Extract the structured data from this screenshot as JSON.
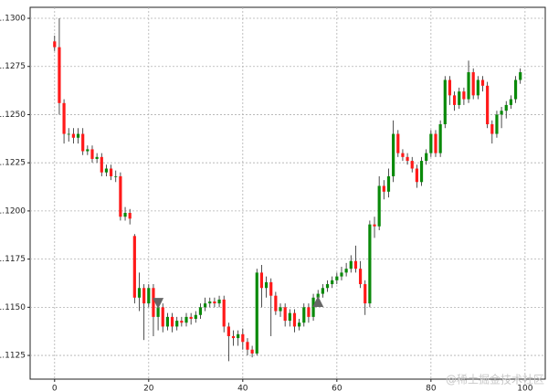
{
  "chart_data": {
    "type": "candlestick",
    "open": [
      1.1288,
      1.1285,
      1.1256,
      1.124,
      1.124,
      1.1238,
      1.124,
      1.1231,
      1.1232,
      1.1227,
      1.1228,
      1.122,
      1.1222,
      1.1218,
      1.1218,
      1.1197,
      1.1199,
      1.1187,
      1.1155,
      1.116,
      1.1152,
      1.116,
      1.1145,
      1.115,
      1.114,
      1.1145,
      1.114,
      1.1143,
      1.1142,
      1.1145,
      1.1144,
      1.1146,
      1.115,
      1.1152,
      1.1153,
      1.1152,
      1.1154,
      1.114,
      1.1135,
      1.1134,
      1.1136,
      1.1132,
      1.1128,
      1.1126,
      1.1168,
      1.116,
      1.1163,
      1.1156,
      1.1148,
      1.115,
      1.1143,
      1.1147,
      1.114,
      1.1142,
      1.115,
      1.1145,
      1.1155,
      1.1157,
      1.116,
      1.1162,
      1.1164,
      1.1166,
      1.1168,
      1.117,
      1.1174,
      1.117,
      1.1162,
      1.1152,
      1.1193,
      1.1192,
      1.1213,
      1.121,
      1.1218,
      1.124,
      1.123,
      1.1228,
      1.1226,
      1.1222,
      1.1215,
      1.1226,
      1.123,
      1.124,
      1.123,
      1.1245,
      1.1268,
      1.126,
      1.1255,
      1.1262,
      1.1258,
      1.1272,
      1.126,
      1.1268,
      1.1265,
      1.1245,
      1.124,
      1.125,
      1.1252,
      1.1255,
      1.1258,
      1.1268
    ],
    "high": [
      1.1291,
      1.13,
      1.1258,
      1.1243,
      1.1243,
      1.1243,
      1.1243,
      1.1234,
      1.1234,
      1.123,
      1.123,
      1.1224,
      1.1224,
      1.1221,
      1.122,
      1.1202,
      1.1201,
      1.1188,
      1.1168,
      1.1162,
      1.1162,
      1.1162,
      1.1152,
      1.1152,
      1.1147,
      1.1147,
      1.1145,
      1.1145,
      1.1147,
      1.1147,
      1.1148,
      1.1152,
      1.1155,
      1.1155,
      1.1155,
      1.1156,
      1.1156,
      1.1142,
      1.1138,
      1.1138,
      1.1139,
      1.1134,
      1.113,
      1.117,
      1.1172,
      1.1166,
      1.1165,
      1.1158,
      1.1152,
      1.1152,
      1.1149,
      1.1149,
      1.1144,
      1.1152,
      1.1152,
      1.1157,
      1.1159,
      1.1162,
      1.1164,
      1.1166,
      1.1168,
      1.1171,
      1.1173,
      1.1177,
      1.1182,
      1.1174,
      1.1164,
      1.1195,
      1.1197,
      1.1218,
      1.1216,
      1.1222,
      1.1247,
      1.1242,
      1.1232,
      1.123,
      1.1228,
      1.1224,
      1.1228,
      1.1232,
      1.1242,
      1.1242,
      1.1247,
      1.127,
      1.127,
      1.1262,
      1.1264,
      1.1264,
      1.1278,
      1.1274,
      1.127,
      1.127,
      1.1267,
      1.1247,
      1.1252,
      1.1254,
      1.1257,
      1.126,
      1.127,
      1.1274
    ],
    "low": [
      1.1283,
      1.125,
      1.1235,
      1.1236,
      1.1235,
      1.1235,
      1.1229,
      1.1229,
      1.1225,
      1.1225,
      1.1218,
      1.1218,
      1.1216,
      1.1215,
      1.1195,
      1.1195,
      1.1193,
      1.1152,
      1.1148,
      1.1133,
      1.115,
      1.1135,
      1.1138,
      1.1137,
      1.1138,
      1.1137,
      1.1138,
      1.114,
      1.114,
      1.1141,
      1.1142,
      1.1144,
      1.1148,
      1.115,
      1.115,
      1.115,
      1.1137,
      1.1122,
      1.113,
      1.113,
      1.1128,
      1.1125,
      1.1124,
      1.1125,
      1.115,
      1.1155,
      1.1135,
      1.1146,
      1.1145,
      1.114,
      1.114,
      1.1137,
      1.1138,
      1.114,
      1.1142,
      1.1143,
      1.1153,
      1.1155,
      1.1158,
      1.116,
      1.1162,
      1.1164,
      1.1166,
      1.1168,
      1.1168,
      1.116,
      1.1146,
      1.115,
      1.1186,
      1.119,
      1.1206,
      1.1207,
      1.1215,
      1.1228,
      1.1226,
      1.1224,
      1.122,
      1.1212,
      1.1213,
      1.1224,
      1.1228,
      1.1228,
      1.1228,
      1.1243,
      1.1255,
      1.1252,
      1.1253,
      1.1255,
      1.1256,
      1.1258,
      1.1258,
      1.1262,
      1.1243,
      1.1235,
      1.1238,
      1.1243,
      1.1248,
      1.1253,
      1.1256,
      1.1266
    ],
    "close": [
      1.1285,
      1.1256,
      1.124,
      1.124,
      1.1238,
      1.124,
      1.1231,
      1.1232,
      1.1227,
      1.1228,
      1.122,
      1.1222,
      1.1218,
      1.1218,
      1.1197,
      1.1199,
      1.1196,
      1.1155,
      1.116,
      1.1152,
      1.116,
      1.1145,
      1.115,
      1.114,
      1.1145,
      1.114,
      1.1143,
      1.1142,
      1.1145,
      1.1144,
      1.1146,
      1.115,
      1.1152,
      1.1153,
      1.1152,
      1.1154,
      1.114,
      1.1135,
      1.1134,
      1.1136,
      1.1132,
      1.1128,
      1.1126,
      1.1168,
      1.116,
      1.1163,
      1.1156,
      1.1148,
      1.115,
      1.1143,
      1.1147,
      1.114,
      1.1142,
      1.115,
      1.1145,
      1.1155,
      1.1157,
      1.116,
      1.1162,
      1.1164,
      1.1166,
      1.1168,
      1.117,
      1.1174,
      1.117,
      1.1162,
      1.1152,
      1.1193,
      1.1192,
      1.1213,
      1.121,
      1.1218,
      1.124,
      1.123,
      1.1228,
      1.1226,
      1.1222,
      1.1215,
      1.1226,
      1.123,
      1.124,
      1.123,
      1.1245,
      1.1268,
      1.126,
      1.1255,
      1.1262,
      1.1258,
      1.1272,
      1.126,
      1.1268,
      1.1265,
      1.1245,
      1.124,
      1.125,
      1.1252,
      1.1255,
      1.1258,
      1.1268,
      1.1272
    ],
    "up_color": "#0a8a0a",
    "down_color": "#ff1a1a",
    "wick_color": "#222222",
    "markers": [
      {
        "x": 22,
        "y": 1.1152,
        "shape": "down",
        "color": "#666666"
      },
      {
        "x": 56,
        "y": 1.1153,
        "shape": "up",
        "color": "#666666"
      }
    ],
    "xlim": [
      -5.2,
      104.3
    ],
    "xticks": [
      0,
      20,
      40,
      60,
      80,
      100
    ],
    "ylim": [
      1.11127,
      1.13057
    ],
    "yticks": [
      {
        "value": 1.1125,
        "label": "1.1125"
      },
      {
        "value": 1.115,
        "label": "1.1150"
      },
      {
        "value": 1.1175,
        "label": "1.1175"
      },
      {
        "value": 1.12,
        "label": "1.1200"
      },
      {
        "value": 1.1225,
        "label": "1.1225"
      },
      {
        "value": 1.125,
        "label": "1.1250"
      },
      {
        "value": 1.1275,
        "label": "1.1275"
      },
      {
        "value": 1.13,
        "label": "1.1300"
      }
    ],
    "grid": true,
    "watermark": "@稀土掘金技术社区"
  }
}
